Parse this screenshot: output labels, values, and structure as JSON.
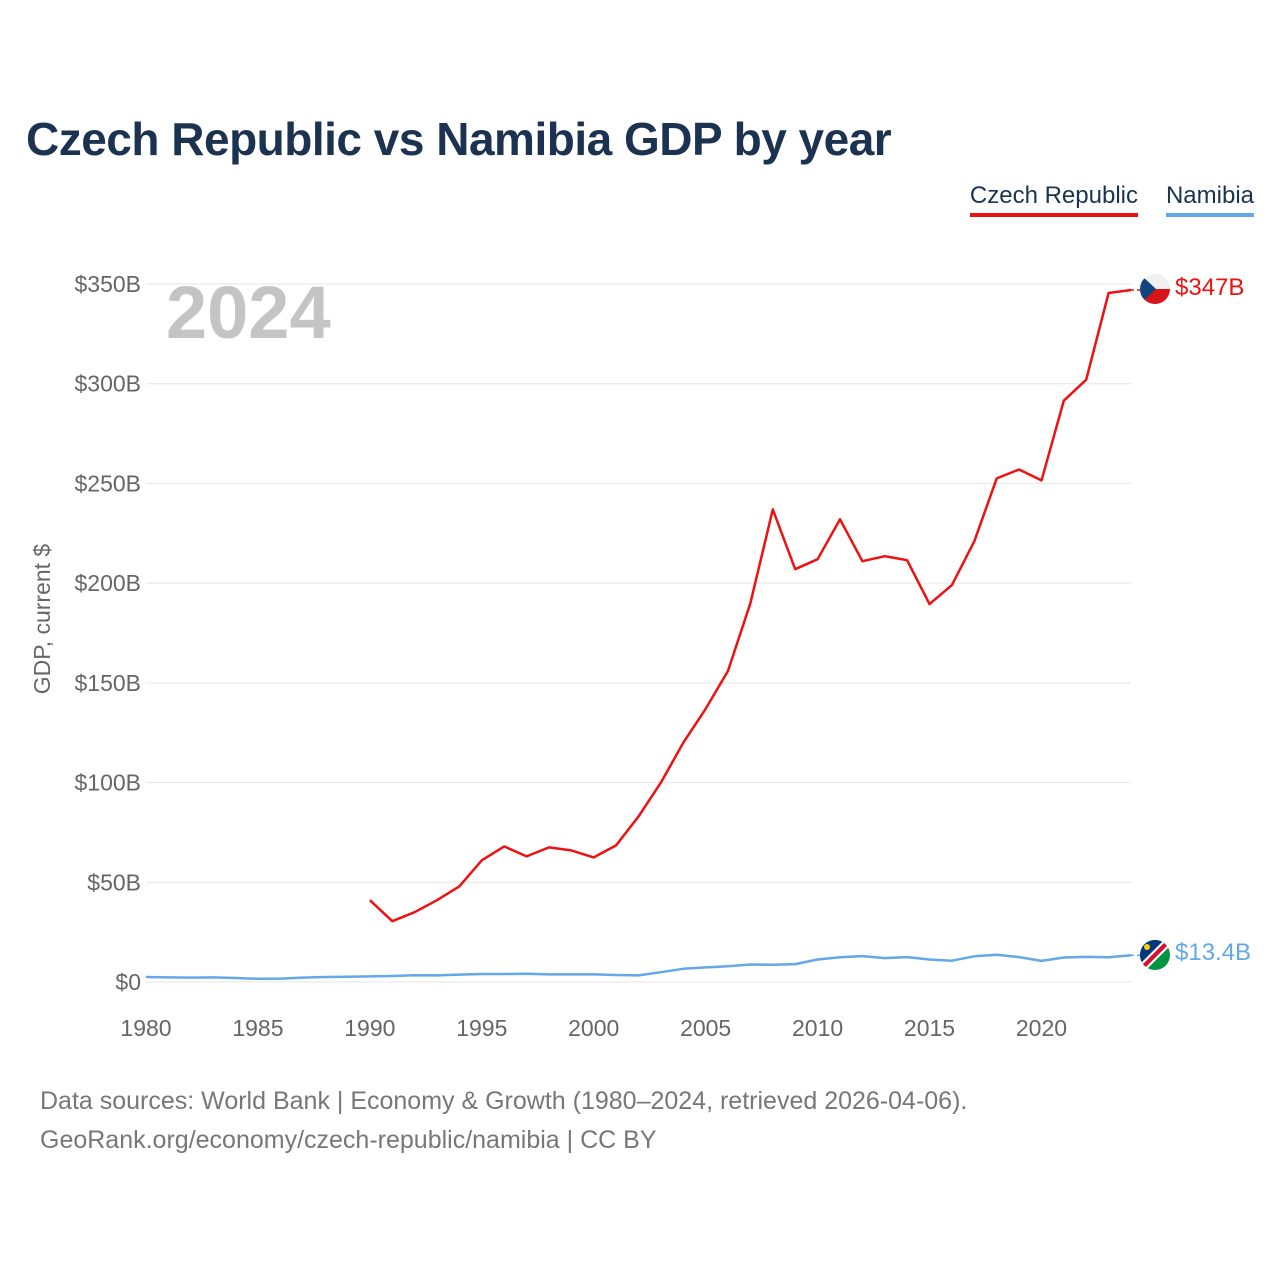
{
  "title": "Czech Republic vs Namibia GDP by year",
  "legend": {
    "czech": "Czech Republic",
    "namibia": "Namibia"
  },
  "year_watermark": "2024",
  "end_labels": {
    "czech": "$347B",
    "namibia": "$13.4B"
  },
  "flags": {
    "czech": "czech-flag-icon",
    "namibia": "namibia-flag-icon"
  },
  "colors": {
    "czech": "#ee1111",
    "namibia": "#63a8e8",
    "title": "#1b3350",
    "grid": "#e6e6e6",
    "watermark": "#c4c4c4"
  },
  "source": {
    "line1": "Data sources: World Bank | Economy & Growth (1980–2024, retrieved 2026-04-06).",
    "line2": "GeoRank.org/economy/czech-republic/namibia | CC BY"
  },
  "chart_data": {
    "type": "line",
    "title": "Czech Republic vs Namibia GDP by year",
    "xlabel": "",
    "ylabel": "GDP, current $",
    "xlim": [
      1980,
      2024
    ],
    "ylim": [
      0,
      350
    ],
    "units": "billions USD",
    "grid": true,
    "legend_position": "top-right",
    "x_ticks": [
      1980,
      1985,
      1990,
      1995,
      2000,
      2005,
      2010,
      2015,
      2020
    ],
    "y_ticks": [
      {
        "value": 0,
        "label": "$0"
      },
      {
        "value": 50,
        "label": "$50B"
      },
      {
        "value": 100,
        "label": "$100B"
      },
      {
        "value": 150,
        "label": "$150B"
      },
      {
        "value": 200,
        "label": "$200B"
      },
      {
        "value": 250,
        "label": "$250B"
      },
      {
        "value": 300,
        "label": "$300B"
      },
      {
        "value": 350,
        "label": "$350B"
      }
    ],
    "series": [
      {
        "name": "Czech Republic",
        "key": "czech",
        "x": [
          1990,
          1991,
          1992,
          1993,
          1994,
          1995,
          1996,
          1997,
          1998,
          1999,
          2000,
          2001,
          2002,
          2003,
          2004,
          2005,
          2006,
          2007,
          2008,
          2009,
          2010,
          2011,
          2012,
          2013,
          2014,
          2015,
          2016,
          2017,
          2018,
          2019,
          2020,
          2021,
          2022,
          2023,
          2024
        ],
        "values": [
          41,
          30.5,
          35,
          41,
          48,
          61,
          68,
          63,
          67.5,
          66,
          62.5,
          68.5,
          83,
          100,
          120,
          137,
          156,
          190,
          237,
          207,
          212,
          232,
          211,
          213.5,
          211.5,
          189.5,
          199,
          221,
          252.5,
          257,
          251.5,
          291.5,
          302,
          345.5,
          347
        ]
      },
      {
        "name": "Namibia",
        "key": "namibia",
        "x": [
          1980,
          1981,
          1982,
          1983,
          1984,
          1985,
          1986,
          1987,
          1988,
          1989,
          1990,
          1991,
          1992,
          1993,
          1994,
          1995,
          1996,
          1997,
          1998,
          1999,
          2000,
          2001,
          2002,
          2003,
          2004,
          2005,
          2006,
          2007,
          2008,
          2009,
          2010,
          2011,
          2012,
          2013,
          2014,
          2015,
          2016,
          2017,
          2018,
          2019,
          2020,
          2021,
          2022,
          2023,
          2024
        ],
        "values": [
          2.5,
          2.3,
          2.2,
          2.3,
          2.0,
          1.6,
          1.7,
          2.2,
          2.5,
          2.6,
          2.8,
          3.0,
          3.4,
          3.3,
          3.7,
          4.0,
          4.0,
          4.1,
          3.8,
          3.8,
          3.8,
          3.5,
          3.3,
          4.9,
          6.6,
          7.3,
          7.9,
          8.8,
          8.6,
          9.0,
          11.3,
          12.4,
          13.0,
          12.0,
          12.5,
          11.3,
          10.7,
          12.9,
          13.7,
          12.5,
          10.6,
          12.3,
          12.6,
          12.4,
          13.4
        ]
      }
    ]
  }
}
